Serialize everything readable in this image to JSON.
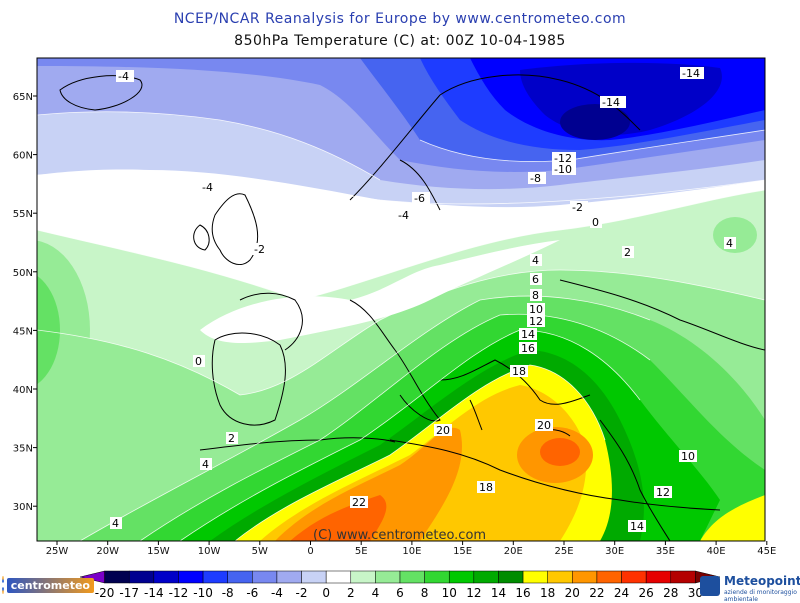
{
  "header": {
    "title": "NCEP/NCAR Reanalysis for Europe by www.centrometeo.com",
    "subtitle": "850hPa Temperature (C) at: 00Z 10-04-1985"
  },
  "map": {
    "lon_ticks": [
      "25W",
      "20W",
      "15W",
      "10W",
      "5W",
      "0",
      "5E",
      "10E",
      "15E",
      "20E",
      "25E",
      "30E",
      "35E",
      "40E",
      "45E"
    ],
    "lat_ticks": [
      "65N",
      "60N",
      "55N",
      "50N",
      "45N",
      "40N",
      "35N",
      "30N"
    ],
    "contour_labels": [
      "-4",
      "-14",
      "-14",
      "-12",
      "-10",
      "-8",
      "-6",
      "-4",
      "-4",
      "-2",
      "-2",
      "0",
      "2",
      "4",
      "4",
      "6",
      "8",
      "10",
      "12",
      "14",
      "16",
      "18",
      "20",
      "20",
      "18",
      "22",
      "10",
      "12",
      "14",
      "0",
      "2",
      "4",
      "4"
    ],
    "watermark": "(C) www.centrometeo.com"
  },
  "colorbar": {
    "labels": [
      "-20",
      "-17",
      "-14",
      "-12",
      "-10",
      "-8",
      "-6",
      "-4",
      "-2",
      "0",
      "2",
      "4",
      "6",
      "8",
      "10",
      "12",
      "14",
      "16",
      "18",
      "20",
      "22",
      "24",
      "26",
      "28",
      "30"
    ],
    "colors": [
      "#7a00c8",
      "#000050",
      "#000090",
      "#0000c8",
      "#0000ff",
      "#1e3cff",
      "#4664f0",
      "#7888f0",
      "#a0aaf0",
      "#c8d2f5",
      "#ffffff",
      "#c8f5c8",
      "#96eb96",
      "#64e164",
      "#32d732",
      "#00c800",
      "#00aa00",
      "#008c00",
      "#ffff00",
      "#ffc800",
      "#ff9600",
      "#ff6400",
      "#ff3200",
      "#e60000",
      "#b40000",
      "#780000"
    ]
  },
  "logos": {
    "left": "centrometeo",
    "right": "Meteopoint",
    "right_sub": "aziende di monitoraggio ambientale"
  }
}
